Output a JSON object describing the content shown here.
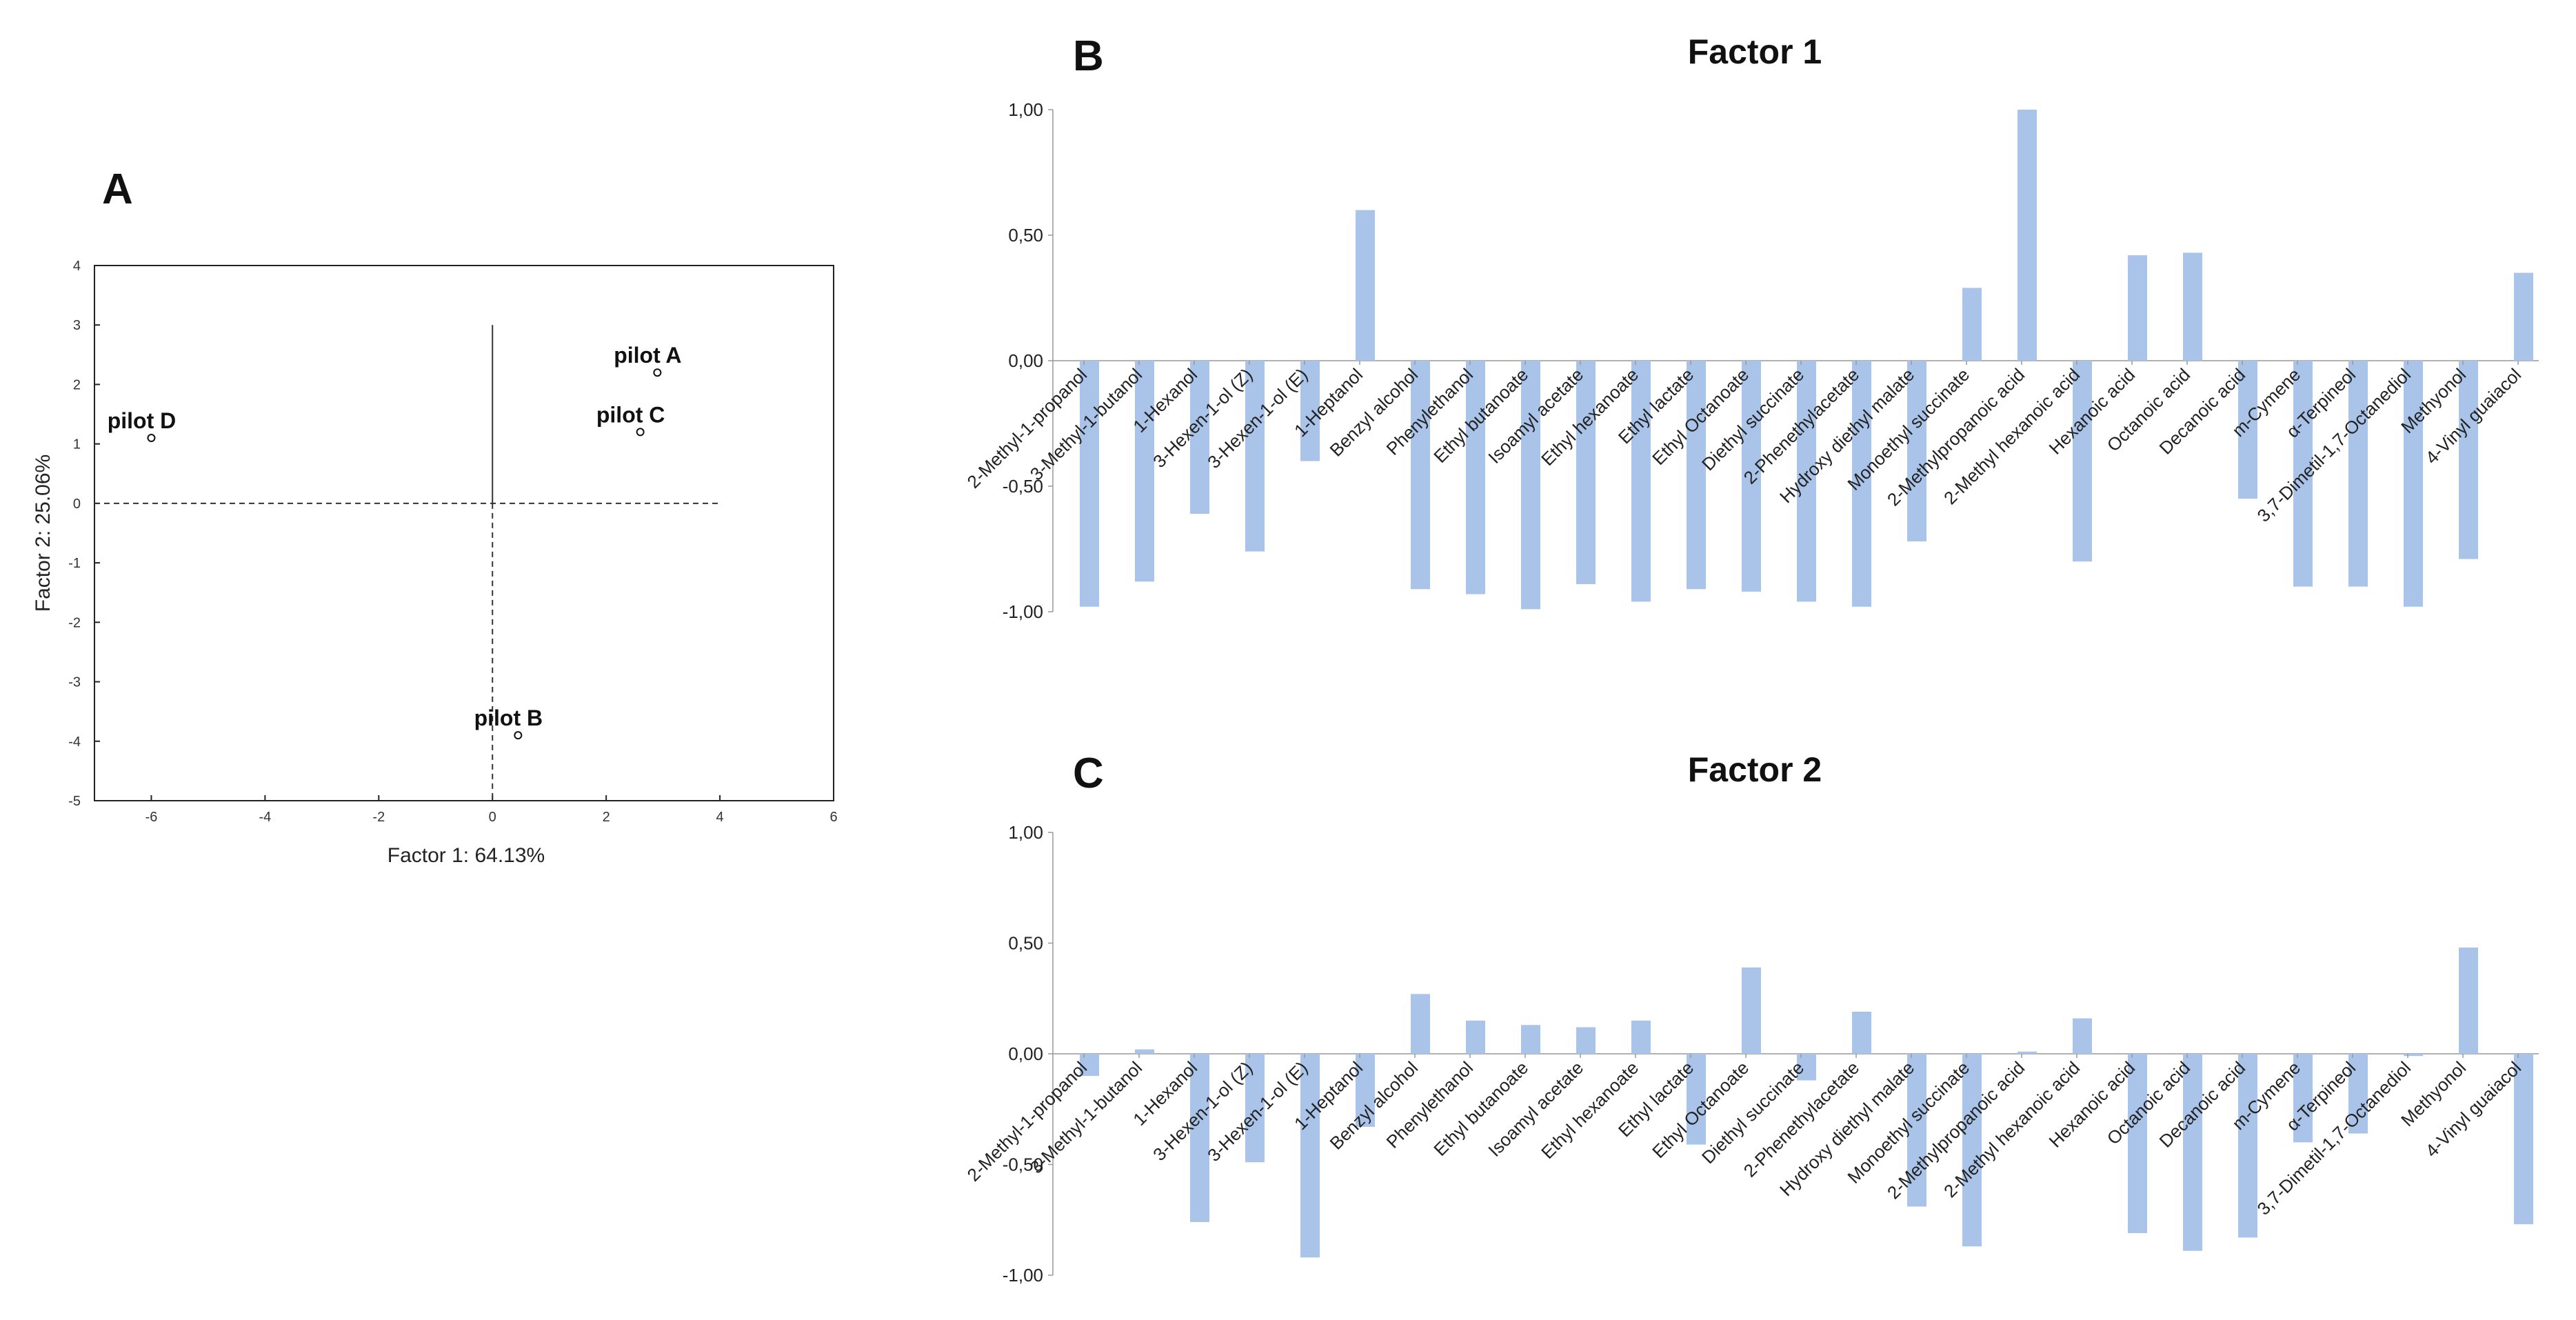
{
  "panels": {
    "A": "A",
    "B": "B",
    "C": "C"
  },
  "chart_data": [
    {
      "id": "A",
      "type": "scatter",
      "xlabel": "Factor 1: 64.13%",
      "ylabel": "Factor 2: 25.06%",
      "xlim": [
        -7,
        6
      ],
      "ylim": [
        -5,
        4
      ],
      "xticks": [
        -6,
        -4,
        -2,
        0,
        2,
        4,
        6
      ],
      "yticks": [
        4,
        3,
        2,
        1,
        0,
        -1,
        -2,
        -3,
        -4,
        -5
      ],
      "points": [
        {
          "label": "pilot A",
          "x": 2.9,
          "y": 2.2
        },
        {
          "label": "pilot C",
          "x": 2.6,
          "y": 1.2
        },
        {
          "label": "pilot D",
          "x": -6.0,
          "y": 1.1
        },
        {
          "label": "pilot B",
          "x": 0.45,
          "y": -3.9
        }
      ]
    },
    {
      "id": "B",
      "type": "bar",
      "title": "Factor 1",
      "ylim": [
        -1,
        1
      ],
      "yticks": [
        "1,00",
        "0,50",
        "0,00",
        "-0,50",
        "-1,00"
      ],
      "categories": [
        "2-Methyl-1-propanol",
        "3-Methyl-1-butanol",
        "1-Hexanol",
        "3-Hexen-1-ol (Z)",
        "3-Hexen-1-ol (E)",
        "1-Heptanol",
        "Benzyl alcohol",
        "Phenylethanol",
        "Ethyl butanoate",
        "Isoamyl acetate",
        "Ethyl hexanoate",
        "Ethyl lactate",
        "Ethyl Octanoate",
        "Diethyl succinate",
        "2-Phenethylacetate",
        "Hydroxy diethyl malate",
        "Monoethyl succinate",
        "2-Methylpropanoic acid",
        "2-Methyl hexanoic acid",
        "Hexanoic acid",
        "Octanoic acid",
        "Decanoic acid",
        "m-Cymene",
        "α-Terpineol",
        "3,7-Dimetil-1,7-Octanediol",
        "Methyonol",
        "4-Vinyl guaiacol"
      ],
      "values": [
        -0.98,
        -0.88,
        -0.61,
        -0.76,
        -0.4,
        0.6,
        -0.91,
        -0.93,
        -0.99,
        -0.89,
        -0.96,
        -0.91,
        -0.92,
        -0.96,
        -0.98,
        -0.72,
        0.29,
        1.0,
        -0.8,
        0.42,
        0.43,
        -0.55,
        -0.9,
        -0.9,
        -0.98,
        -0.79,
        0.35
      ]
    },
    {
      "id": "C",
      "type": "bar",
      "title": "Factor 2",
      "ylim": [
        -1,
        1
      ],
      "yticks": [
        "1,00",
        "0,50",
        "0,00",
        "-0,50",
        "-1,00"
      ],
      "categories": [
        "2-Methyl-1-propanol",
        "3-Methyl-1-butanol",
        "1-Hexanol",
        "3-Hexen-1-ol (Z)",
        "3-Hexen-1-ol (E)",
        "1-Heptanol",
        "Benzyl alcohol",
        "Phenylethanol",
        "Ethyl butanoate",
        "Isoamyl acetate",
        "Ethyl hexanoate",
        "Ethyl lactate",
        "Ethyl Octanoate",
        "Diethyl succinate",
        "2-Phenethylacetate",
        "Hydroxy diethyl malate",
        "Monoethyl succinate",
        "2-Methylpropanoic acid",
        "2-Methyl hexanoic acid",
        "Hexanoic acid",
        "Octanoic acid",
        "Decanoic acid",
        "m-Cymene",
        "α-Terpineol",
        "3,7-Dimetil-1,7-Octanediol",
        "Methyonol",
        "4-Vinyl guaiacol"
      ],
      "values": [
        -0.1,
        0.02,
        -0.76,
        -0.49,
        -0.92,
        -0.33,
        0.27,
        0.15,
        0.13,
        0.12,
        0.15,
        -0.41,
        0.39,
        -0.12,
        0.19,
        -0.69,
        -0.87,
        0.01,
        0.16,
        -0.81,
        -0.89,
        -0.83,
        -0.4,
        -0.36,
        -0.01,
        0.48,
        -0.77
      ]
    }
  ]
}
